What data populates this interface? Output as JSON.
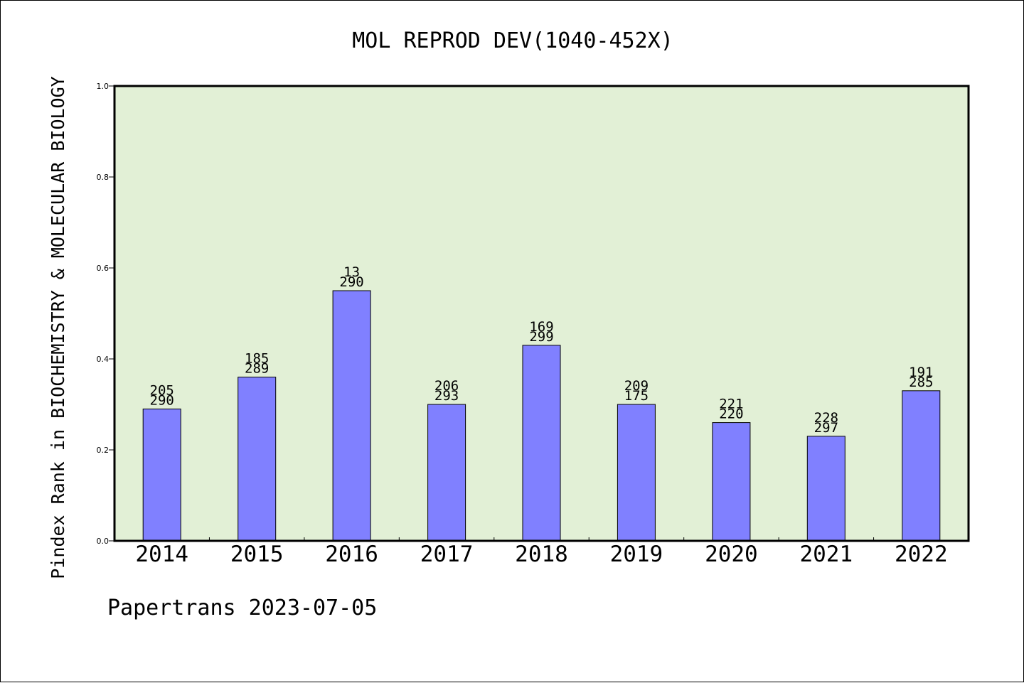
{
  "chart_data": {
    "type": "bar",
    "title": "MOL REPROD DEV(1040-452X)",
    "ylabel": "Pindex Rank in BIOCHEMISTRY & MOLECULAR BIOLOGY",
    "xlabel": "",
    "footer": "Papertrans 2023-07-05",
    "categories": [
      "2014",
      "2015",
      "2016",
      "2017",
      "2018",
      "2019",
      "2020",
      "2021",
      "2022"
    ],
    "values": [
      0.29,
      0.36,
      0.55,
      0.3,
      0.43,
      0.3,
      0.26,
      0.23,
      0.33
    ],
    "labels_top": [
      "205",
      "185",
      "13",
      "206",
      "169",
      "209",
      "221",
      "228",
      "191"
    ],
    "labels_bottom": [
      "290",
      "289",
      "290",
      "293",
      "299",
      "175",
      "220",
      "297",
      "285"
    ],
    "ylim": [
      0,
      1.0
    ],
    "yticks": [
      "0.0",
      "0.2",
      "0.4",
      "0.6",
      "0.8",
      "1.0"
    ],
    "grid": false,
    "colors": {
      "plot_background": "#e2f0d6",
      "bar_fill": "#8080ff",
      "bar_stroke": "#000000"
    }
  }
}
